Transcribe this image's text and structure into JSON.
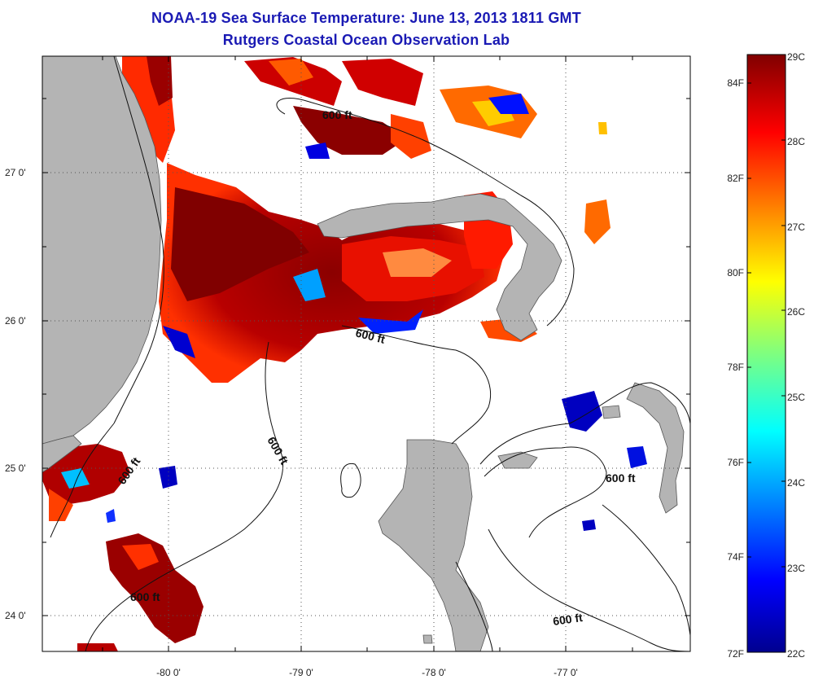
{
  "title": "NOAA-19 Sea Surface Temperature:  June 13, 2013 1811 GMT",
  "subtitle": "Rutgers Coastal Ocean Observation Lab",
  "map": {
    "longitude_ticks": [
      "-80 0'",
      "-79 0'",
      "-78 0'",
      "-77 0'"
    ],
    "latitude_ticks": [
      "27 0'",
      "26 0'",
      "25 0'",
      "24 0'"
    ],
    "contour_label": "600 ft",
    "land_color": "#b4b4b4",
    "cloud_color": "#ffffff"
  },
  "colorbar": {
    "celsius": [
      "29C",
      "28C",
      "27C",
      "26C",
      "25C",
      "24C",
      "23C",
      "22C"
    ],
    "fahrenheit": [
      "84F",
      "82F",
      "80F",
      "78F",
      "76F",
      "74F",
      "72F"
    ],
    "range_c": [
      22,
      29
    ],
    "colormap": "jet"
  }
}
